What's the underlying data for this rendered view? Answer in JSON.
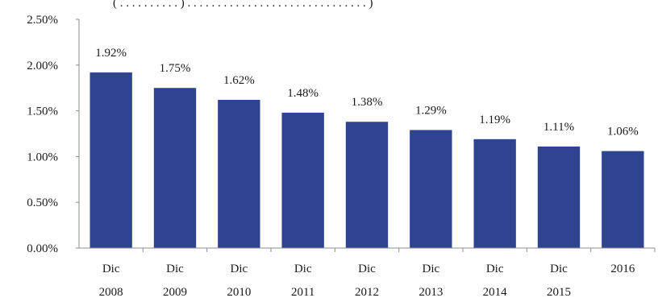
{
  "top_fragment": "( . . . . . . . . . . ) . . . . . . . . . . . . . . . . . . . . . . . . . . . . . . )",
  "chart_data": {
    "type": "bar",
    "title": "",
    "xlabel": "",
    "ylabel": "",
    "categories": [
      [
        "Dic",
        "2008"
      ],
      [
        "Dic",
        "2009"
      ],
      [
        "Dic",
        "2010"
      ],
      [
        "Dic",
        "2011"
      ],
      [
        "Dic",
        "2012"
      ],
      [
        "Dic",
        "2013"
      ],
      [
        "Dic",
        "2014"
      ],
      [
        "Dic",
        "2015"
      ],
      [
        "2016"
      ]
    ],
    "values": [
      1.92,
      1.75,
      1.62,
      1.48,
      1.38,
      1.29,
      1.19,
      1.11,
      1.06
    ],
    "data_labels": [
      "1.92%",
      "1.75%",
      "1.62%",
      "1.48%",
      "1.38%",
      "1.29%",
      "1.19%",
      "1.11%",
      "1.06%"
    ],
    "y_ticks": [
      "0.00%",
      "0.50%",
      "1.00%",
      "1.50%",
      "2.00%",
      "2.50%"
    ],
    "ylim": [
      0,
      2.5
    ],
    "grid": false,
    "legend": "none",
    "bar_color": "#2E4490",
    "axis_color": "#8c8c8c"
  }
}
